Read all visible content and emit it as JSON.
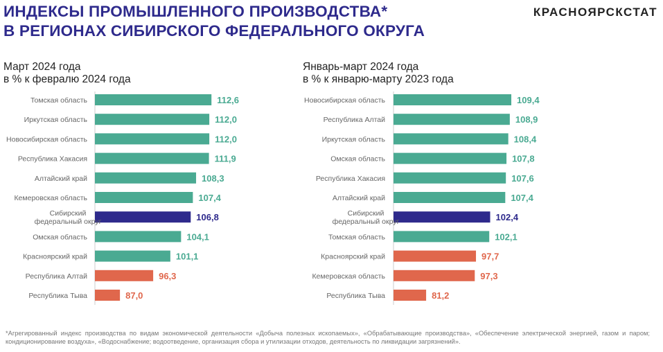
{
  "header": {
    "title_line1": "ИНДЕКСЫ ПРОМЫШЛЕННОГО ПРОИЗВОДСТВА*",
    "title_line2": "В РЕГИОНАХ СИБИРСКОГО ФЕДЕРАЛЬНОГО ОКРУГА",
    "brand": "КРАСНОЯРСКСТАТ"
  },
  "colors": {
    "growth": "#4aaa92",
    "district": "#2e2a8c",
    "decline": "#e0674c",
    "title": "#2e2a8c"
  },
  "chart_data": [
    {
      "type": "bar",
      "orientation": "horizontal",
      "subtitle_line1": "Март 2024 года",
      "subtitle_line2": "в % к февралю 2024 года",
      "categories": [
        "Томская область",
        "Иркутская область",
        "Новосибирская область",
        "Республика Хакасия",
        "Алтайский край",
        "Кемеровская область",
        "Сибирский федеральный округ",
        "Омская область",
        "Красноярский край",
        "Республика Алтай",
        "Республика Тыва"
      ],
      "values": [
        112.6,
        112.0,
        112.0,
        111.9,
        108.3,
        107.4,
        106.8,
        104.1,
        101.1,
        96.3,
        87.0
      ],
      "labels": [
        "112,6",
        "112,0",
        "112,0",
        "111,9",
        "108,3",
        "107,4",
        "106,8",
        "104,1",
        "101,1",
        "96,3",
        "87,0"
      ],
      "xlim": [
        80,
        116
      ]
    },
    {
      "type": "bar",
      "orientation": "horizontal",
      "subtitle_line1": "Январь-март 2024 года",
      "subtitle_line2": "в % к январю-марту 2023 года",
      "categories": [
        "Новосибирская область",
        "Республика Алтай",
        "Иркутская область",
        "Омская область",
        "Республика Хакасия",
        "Алтайский край",
        "Сибирский федеральный округ",
        "Томская область",
        "Красноярский край",
        "Кемеровская область",
        "Республика Тыва"
      ],
      "values": [
        109.4,
        108.9,
        108.4,
        107.8,
        107.6,
        107.4,
        102.4,
        102.1,
        97.7,
        97.3,
        81.2
      ],
      "labels": [
        "109,4",
        "108,9",
        "108,4",
        "107,8",
        "107,6",
        "107,4",
        "102,4",
        "102,1",
        "97,7",
        "97,3",
        "81,2"
      ],
      "xlim": [
        70.4,
        116
      ]
    }
  ],
  "footnote": "*Агрегированный индекс производства по видам экономической деятельности «Добыча полезных ископаемых», «Обрабатывающие производства», «Обеспечение электрической энергией, газом и паром; кондиционирование воздуха», «Водоснабжение; водоотведение, организация сбора и утилизации отходов, деятельность по ликвидации загрязнений»."
}
